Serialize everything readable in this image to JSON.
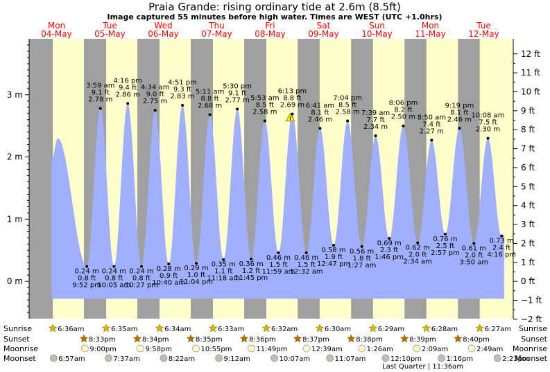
{
  "header": {
    "title": "Praia Grande: rising  ordinary tide at 2.6m (8.5ft)",
    "subtitle": "Image captured 55 minutes before high water. Times are WEST (UTC +1.0hrs)"
  },
  "chart_data": {
    "type": "area",
    "days": [
      {
        "name": "Mon",
        "date": "04-May"
      },
      {
        "name": "Tue",
        "date": "05-May"
      },
      {
        "name": "Wed",
        "date": "06-May"
      },
      {
        "name": "Thu",
        "date": "07-May"
      },
      {
        "name": "Fri",
        "date": "08-May"
      },
      {
        "name": "Sat",
        "date": "09-May"
      },
      {
        "name": "Sun",
        "date": "10-May"
      },
      {
        "name": "Mon",
        "date": "11-May"
      },
      {
        "name": "Tue",
        "date": "12-May"
      }
    ],
    "y_left": {
      "unit": "m",
      "ticks": [
        {
          "v": 0,
          "label": "0 m"
        },
        {
          "v": 1,
          "label": "1 m"
        },
        {
          "v": 2,
          "label": "2 m"
        },
        {
          "v": 3,
          "label": "3 m"
        }
      ],
      "range": [
        -0.6,
        3.9
      ]
    },
    "y_right": {
      "unit": "ft",
      "ticks": [
        {
          "ft": -2,
          "label": "−2 ft"
        },
        {
          "ft": -1,
          "label": "−1 ft"
        },
        {
          "ft": 0,
          "label": "0 ft"
        },
        {
          "ft": 1,
          "label": "1 ft"
        },
        {
          "ft": 2,
          "label": "2 ft"
        },
        {
          "ft": 3,
          "label": "3 ft"
        },
        {
          "ft": 4,
          "label": "4 ft"
        },
        {
          "ft": 5,
          "label": "5 ft"
        },
        {
          "ft": 6,
          "label": "6 ft"
        },
        {
          "ft": 7,
          "label": "7 ft"
        },
        {
          "ft": 8,
          "label": "8 ft"
        },
        {
          "ft": 9,
          "label": "9 ft"
        },
        {
          "ft": 10,
          "label": "10 ft"
        },
        {
          "ft": 11,
          "label": "11 ft"
        },
        {
          "ft": 12,
          "label": "12 ft"
        }
      ]
    },
    "current": {
      "day": 4,
      "time": "17:18",
      "height": 2.6
    },
    "tides": [
      {
        "type": "high",
        "day": 0,
        "time": "08:50",
        "height_m": 2.3,
        "labels": []
      },
      {
        "type": "low",
        "day": 0,
        "time": "21:52",
        "height_m": 0.24,
        "labels": [
          "0.24 m",
          "0.8 ft",
          "9:52 pm"
        ]
      },
      {
        "type": "high",
        "day": 1,
        "time": "03:59",
        "height_m": 2.78,
        "labels": [
          "3:59 am",
          "9.1 ft",
          "2.78 m"
        ]
      },
      {
        "type": "low",
        "day": 1,
        "time": "10:05",
        "height_m": 0.24,
        "labels": [
          "0.24 m",
          "0.8 ft",
          "10:05 am"
        ]
      },
      {
        "type": "high",
        "day": 1,
        "time": "16:16",
        "height_m": 2.86,
        "labels": [
          "4:16 pm",
          "9.4 ft",
          "2.86 m"
        ]
      },
      {
        "type": "low",
        "day": 1,
        "time": "22:27",
        "height_m": 0.24,
        "labels": [
          "0.24 m",
          "0.8 ft",
          "10:27 pm"
        ]
      },
      {
        "type": "high",
        "day": 2,
        "time": "04:34",
        "height_m": 2.75,
        "labels": [
          "4:34 am",
          "9.0 ft",
          "2.75 m"
        ]
      },
      {
        "type": "low",
        "day": 2,
        "time": "10:40",
        "height_m": 0.28,
        "labels": [
          "0.28 m",
          "0.9 ft",
          "10:40 am"
        ]
      },
      {
        "type": "high",
        "day": 2,
        "time": "16:51",
        "height_m": 2.83,
        "labels": [
          "4:51 pm",
          "9.3 ft",
          "2.83 m"
        ]
      },
      {
        "type": "low",
        "day": 2,
        "time": "23:04",
        "height_m": 0.29,
        "labels": [
          "0.29 m",
          "1.0 ft",
          "11:04 pm"
        ]
      },
      {
        "type": "high",
        "day": 3,
        "time": "05:11",
        "height_m": 2.68,
        "labels": [
          "5:11 am",
          "8.8 ft",
          "2.68 m"
        ]
      },
      {
        "type": "low",
        "day": 3,
        "time": "11:18",
        "height_m": 0.35,
        "labels": [
          "0.35 m",
          "1.1 ft",
          "11:18 am"
        ]
      },
      {
        "type": "high",
        "day": 3,
        "time": "17:30",
        "height_m": 2.77,
        "labels": [
          "5:30 pm",
          "9.1 ft",
          "2.77 m"
        ]
      },
      {
        "type": "low",
        "day": 3,
        "time": "23:45",
        "height_m": 0.36,
        "labels": [
          "0.36 m",
          "1.2 ft",
          "11:45 pm"
        ]
      },
      {
        "type": "high",
        "day": 4,
        "time": "05:53",
        "height_m": 2.58,
        "labels": [
          "5:53 am",
          "8.5 ft",
          "2.58 m"
        ]
      },
      {
        "type": "low",
        "day": 4,
        "time": "11:59",
        "height_m": 0.46,
        "labels": [
          "0.46 m",
          "1.5 ft",
          "11:59 am"
        ]
      },
      {
        "type": "high",
        "day": 4,
        "time": "18:13",
        "height_m": 2.69,
        "labels": [
          "6:13 pm",
          "8.8 ft",
          "2.69 m"
        ]
      },
      {
        "type": "low",
        "day": 5,
        "time": "00:32",
        "height_m": 0.46,
        "labels": [
          "0.46 m",
          "1.5 ft",
          "12:32 am"
        ]
      },
      {
        "type": "high",
        "day": 5,
        "time": "06:41",
        "height_m": 2.46,
        "labels": [
          "6:41 am",
          "8.1 ft",
          "2.46 m"
        ]
      },
      {
        "type": "low",
        "day": 5,
        "time": "12:47",
        "height_m": 0.58,
        "labels": [
          "0.58 m",
          "1.9 ft",
          "12:47 pm"
        ]
      },
      {
        "type": "high",
        "day": 5,
        "time": "19:04",
        "height_m": 2.58,
        "labels": [
          "7:04 pm",
          "8.5 ft",
          "2.58 m"
        ]
      },
      {
        "type": "low",
        "day": 6,
        "time": "01:27",
        "height_m": 0.56,
        "labels": [
          "0.56 m",
          "1.8 ft",
          "1:27 am"
        ]
      },
      {
        "type": "high",
        "day": 6,
        "time": "07:39",
        "height_m": 2.34,
        "labels": [
          "7:39 am",
          "7.7 ft",
          "2.34 m"
        ]
      },
      {
        "type": "low",
        "day": 6,
        "time": "13:46",
        "height_m": 0.69,
        "labels": [
          "0.69 m",
          "2.3 ft",
          "1:46 pm"
        ]
      },
      {
        "type": "high",
        "day": 6,
        "time": "20:06",
        "height_m": 2.5,
        "labels": [
          "8:06 pm",
          "8.2 ft",
          "2.50 m"
        ]
      },
      {
        "type": "low",
        "day": 7,
        "time": "02:34",
        "height_m": 0.62,
        "labels": [
          "0.62 m",
          "2.0 ft",
          "2:34 am"
        ]
      },
      {
        "type": "high",
        "day": 7,
        "time": "08:50",
        "height_m": 2.27,
        "labels": [
          "8:50 am",
          "7.4 ft",
          "2.27 m"
        ]
      },
      {
        "type": "low",
        "day": 7,
        "time": "14:57",
        "height_m": 0.76,
        "labels": [
          "0.76 m",
          "2.5 ft",
          "2:57 pm"
        ]
      },
      {
        "type": "high",
        "day": 7,
        "time": "21:19",
        "height_m": 2.46,
        "labels": [
          "9:19 pm",
          "8.1 ft",
          "2.46 m"
        ]
      },
      {
        "type": "low",
        "day": 8,
        "time": "03:50",
        "height_m": 0.61,
        "labels": [
          "0.61 m",
          "2.0 ft",
          "3:50 am"
        ]
      },
      {
        "type": "high",
        "day": 8,
        "time": "10:08",
        "height_m": 2.3,
        "labels": [
          "10:08 am",
          "7.5 ft",
          "2.30 m"
        ]
      },
      {
        "type": "low",
        "day": 8,
        "time": "16:16",
        "height_m": 0.73,
        "labels": [
          "0.73 m",
          "2.4 ft",
          "4:16 pm"
        ]
      }
    ],
    "data_start": {
      "day": 0,
      "time": "06:00",
      "height_m": 1.95
    },
    "data_end": {
      "day": 8,
      "time": "17:30",
      "height_m": 0.76
    },
    "night": [
      {
        "start": {
          "day": 0,
          "time": "20:33"
        },
        "end": {
          "day": 1,
          "time": "06:35"
        }
      },
      {
        "start": {
          "day": 1,
          "time": "20:34"
        },
        "end": {
          "day": 2,
          "time": "06:34"
        }
      },
      {
        "start": {
          "day": 2,
          "time": "20:35"
        },
        "end": {
          "day": 3,
          "time": "06:33"
        }
      },
      {
        "start": {
          "day": 3,
          "time": "20:36"
        },
        "end": {
          "day": 4,
          "time": "06:32"
        }
      },
      {
        "start": {
          "day": 4,
          "time": "20:37"
        },
        "end": {
          "day": 5,
          "time": "06:30"
        }
      },
      {
        "start": {
          "day": 5,
          "time": "20:38"
        },
        "end": {
          "day": 6,
          "time": "06:29"
        }
      },
      {
        "start": {
          "day": 6,
          "time": "20:39"
        },
        "end": {
          "day": 7,
          "time": "06:28"
        }
      },
      {
        "start": {
          "day": 7,
          "time": "20:40"
        },
        "end": {
          "day": 8,
          "time": "06:27"
        }
      }
    ],
    "sunrise": [
      {
        "day": 0,
        "time": "06:36",
        "label": "6:36am"
      },
      {
        "day": 1,
        "time": "06:35",
        "label": "6:35am"
      },
      {
        "day": 2,
        "time": "06:34",
        "label": "6:34am"
      },
      {
        "day": 3,
        "time": "06:33",
        "label": "6:33am"
      },
      {
        "day": 4,
        "time": "06:32",
        "label": "6:32am"
      },
      {
        "day": 5,
        "time": "06:30",
        "label": "6:30am"
      },
      {
        "day": 6,
        "time": "06:29",
        "label": "6:29am"
      },
      {
        "day": 7,
        "time": "06:28",
        "label": "6:28am"
      },
      {
        "day": 8,
        "time": "06:27",
        "label": "6:27am"
      }
    ],
    "sunset": [
      {
        "day": 0,
        "time": "20:33",
        "label": "8:33pm"
      },
      {
        "day": 1,
        "time": "20:34",
        "label": "8:34pm"
      },
      {
        "day": 2,
        "time": "20:35",
        "label": "8:35pm"
      },
      {
        "day": 3,
        "time": "20:36",
        "label": "8:36pm"
      },
      {
        "day": 4,
        "time": "20:37",
        "label": "8:37pm"
      },
      {
        "day": 5,
        "time": "20:38",
        "label": "8:38pm"
      },
      {
        "day": 6,
        "time": "20:39",
        "label": "8:39pm"
      },
      {
        "day": 7,
        "time": "20:40",
        "label": "8:40pm"
      }
    ],
    "moonrise": [
      {
        "day": 0,
        "time": "21:00",
        "label": "9:00pm"
      },
      {
        "day": 1,
        "time": "21:58",
        "label": "9:58pm"
      },
      {
        "day": 2,
        "time": "22:55",
        "label": "10:55pm"
      },
      {
        "day": 3,
        "time": "23:49",
        "label": "11:49pm"
      },
      {
        "day": 5,
        "time": "00:39",
        "label": "12:39am"
      },
      {
        "day": 6,
        "time": "01:26",
        "label": "1:26am"
      },
      {
        "day": 7,
        "time": "02:09",
        "label": "2:09am"
      },
      {
        "day": 8,
        "time": "02:49",
        "label": "2:49am"
      }
    ],
    "moonset": [
      {
        "day": 0,
        "time": "06:57",
        "label": "6:57am"
      },
      {
        "day": 1,
        "time": "07:37",
        "label": "7:37am"
      },
      {
        "day": 2,
        "time": "08:22",
        "label": "8:22am"
      },
      {
        "day": 3,
        "time": "09:12",
        "label": "9:12am"
      },
      {
        "day": 4,
        "time": "10:07",
        "label": "10:07am"
      },
      {
        "day": 5,
        "time": "11:07",
        "label": "11:07am"
      },
      {
        "day": 6,
        "time": "12:10",
        "label": "12:10pm"
      },
      {
        "day": 7,
        "time": "13:16",
        "label": "1:16pm"
      },
      {
        "day": 8,
        "time": "14:23",
        "label": "2:23pm"
      }
    ],
    "moon_phase": {
      "label": "Last Quarter | 11:36am"
    },
    "row_labels": {
      "sunrise": "Sunrise",
      "sunset": "Sunset",
      "moonrise": "Moonrise",
      "moonset": "Moonset"
    }
  },
  "colors": {
    "day": "#ffffcc",
    "night": "#a0a0a0",
    "water": "#a0b0ff",
    "day_label": "#ff0000",
    "sun": "#d4b800",
    "sunset_icon": "#b07000",
    "moonrise_icon": "#ffffcc",
    "moonset_icon": "#c0c0b0"
  }
}
